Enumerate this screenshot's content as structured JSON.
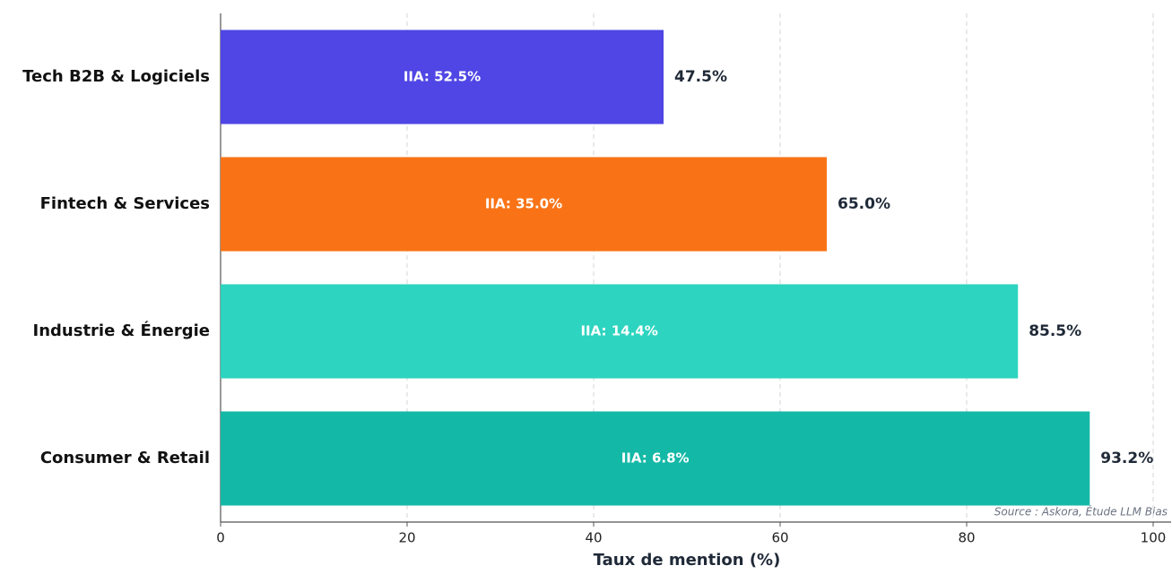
{
  "chart_data": {
    "type": "bar",
    "orientation": "horizontal",
    "categories": [
      "Tech B2B & Logiciels",
      "Fintech & Services",
      "Industrie & Énergie",
      "Consumer & Retail"
    ],
    "values": [
      47.5,
      65.0,
      85.5,
      93.2
    ],
    "value_labels": [
      "47.5%",
      "65.0%",
      "85.5%",
      "93.2%"
    ],
    "inner_labels": [
      "IIA: 52.5%",
      "IIA: 35.0%",
      "IIA: 14.4%",
      "IIA: 6.8%"
    ],
    "colors": [
      "#4f46e5",
      "#f97316",
      "#2dd4bf",
      "#14b8a6"
    ],
    "xlabel": "Taux de mention (%)",
    "xlim": [
      0,
      100
    ],
    "xticks": [
      0,
      20,
      40,
      60,
      80,
      100
    ],
    "grid": true,
    "source": "Source : Askora, Étude LLM Bias"
  }
}
